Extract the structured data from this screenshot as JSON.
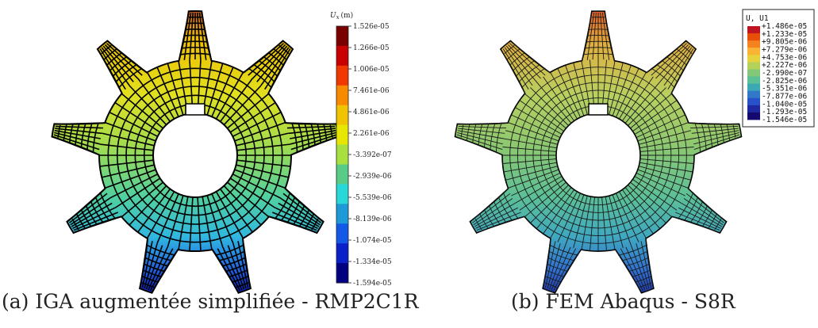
{
  "panel_a": {
    "caption": "(a) IGA augmentée simplifiée - RMP2C1R",
    "legend_title": "U_x (m)",
    "legend_title_main": "U",
    "legend_title_sub": "x",
    "legend_title_unit": "(m)",
    "tick_labels": [
      "1.526e-05",
      "1.266e-05",
      "1.006e-05",
      "7.461e-06",
      "4.861e-06",
      "2.261e-06",
      "-3.392e-07",
      "-2.939e-06",
      "-5.539e-06",
      "-8.139e-06",
      "-1.074e-05",
      "-1.334e-05",
      "-1.594e-05"
    ],
    "colors": [
      "#7a0000",
      "#c80000",
      "#f03800",
      "#f88a00",
      "#f0c400",
      "#e6e600",
      "#a8e040",
      "#58cc86",
      "#28d8d8",
      "#1e9ad8",
      "#1458e8",
      "#0a20c8",
      "#000080"
    ]
  },
  "panel_b": {
    "caption": "(b) FEM Abaqus - S8R",
    "legend_title": "U, U1",
    "tick_labels": [
      "+1.486e-05",
      "+1.233e-05",
      "+9.805e-06",
      "+7.279e-06",
      "+4.753e-06",
      "+2.227e-06",
      "-2.990e-07",
      "-2.825e-06",
      "-5.351e-06",
      "-7.877e-06",
      "-1.040e-05",
      "-1.293e-05",
      "-1.546e-05"
    ],
    "colors": [
      "#c0141e",
      "#e8500a",
      "#f4821e",
      "#f8b432",
      "#e6d23c",
      "#b4d25a",
      "#82c878",
      "#5ac096",
      "#3ca8b4",
      "#3278c8",
      "#2850c8",
      "#1e28a0",
      "#140a6e"
    ]
  }
}
